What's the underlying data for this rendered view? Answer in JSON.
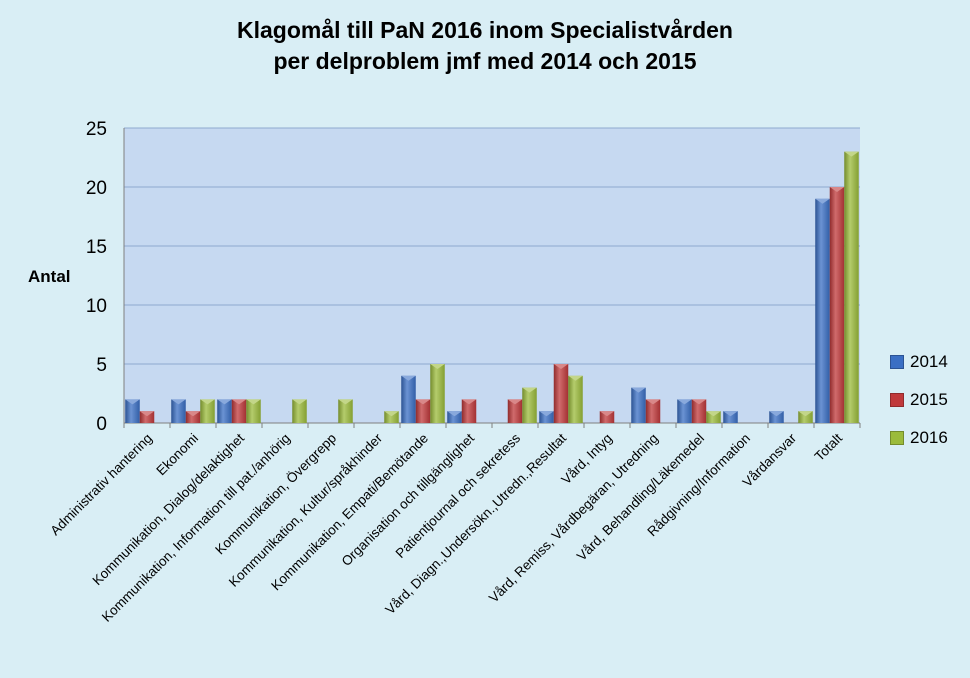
{
  "chart_data": {
    "type": "bar",
    "title": [
      "Klagomål till PaN 2016 inom Specialistvården",
      "per delproblem jmf med 2014 och 2015"
    ],
    "ylabel": "Antal",
    "xlabel": "",
    "ylim": [
      0,
      25
    ],
    "yticks": [
      0,
      5,
      10,
      15,
      20,
      25
    ],
    "grid": true,
    "legend_position": "right",
    "categories": [
      "Administrativ hantering",
      "Ekonomi",
      "Kommunikation, Dialog/delaktighet",
      "Kommunikation, Information till pat./anhörig",
      "Kommunikation, Övergrepp",
      "Kommunikation, Kultur/språkhinder",
      "Kommunikation, Empati/Bemötande",
      "Organisation och tillgänglighet",
      "Patientjournal och sekretess",
      "Vård, Diagn.,Undersökn.,Utredn.,Resultat",
      "Vård, Intyg",
      "Vård, Remiss, Vårdbegäran, Utredning",
      "Vård, Behandling/Läkemedel",
      "Rådgivning/Information",
      "Vårdansvar",
      "Totalt"
    ],
    "series": [
      {
        "name": "2014",
        "color": "#3a6fc4",
        "values": [
          2,
          2,
          2,
          0,
          0,
          0,
          4,
          1,
          0,
          1,
          0,
          3,
          2,
          1,
          1,
          19
        ]
      },
      {
        "name": "2015",
        "color": "#c0393b",
        "values": [
          1,
          1,
          2,
          0,
          0,
          0,
          2,
          2,
          2,
          5,
          1,
          2,
          2,
          0,
          0,
          20
        ]
      },
      {
        "name": "2016",
        "color": "#9bbb3b",
        "values": [
          0,
          2,
          2,
          2,
          2,
          1,
          5,
          0,
          3,
          4,
          0,
          0,
          1,
          0,
          1,
          23
        ]
      }
    ],
    "plot_background": "#c6d9f1",
    "page_background": "#d9eef5"
  }
}
